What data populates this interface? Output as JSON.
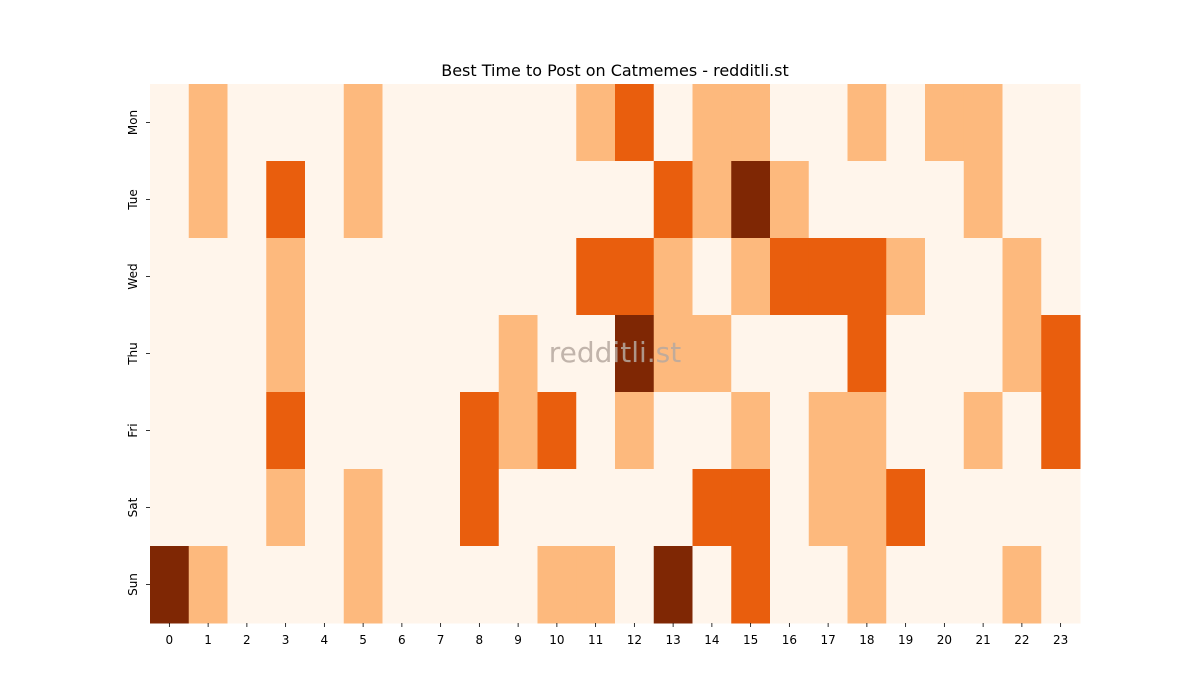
{
  "chart_data": {
    "type": "heatmap",
    "title": "Best Time to Post on Catmemes - redditli.st",
    "watermark": "redditli.st",
    "x_categories": [
      "0",
      "1",
      "2",
      "3",
      "4",
      "5",
      "6",
      "7",
      "8",
      "9",
      "10",
      "11",
      "12",
      "13",
      "14",
      "15",
      "16",
      "17",
      "18",
      "19",
      "20",
      "21",
      "22",
      "23"
    ],
    "y_categories": [
      "Mon",
      "Tue",
      "Wed",
      "Thu",
      "Fri",
      "Sat",
      "Sun"
    ],
    "xlabel": "",
    "ylabel": "",
    "levels": [
      0,
      1,
      2,
      3
    ],
    "level_colors": [
      "#fff5eb",
      "#fdb97d",
      "#e95e0d",
      "#7f2704"
    ],
    "values": [
      [
        0,
        1,
        0,
        0,
        0,
        1,
        0,
        0,
        0,
        0,
        0,
        1,
        2,
        0,
        1,
        1,
        0,
        0,
        1,
        0,
        1,
        1,
        0,
        0
      ],
      [
        0,
        1,
        0,
        2,
        0,
        1,
        0,
        0,
        0,
        0,
        0,
        0,
        0,
        2,
        1,
        3,
        1,
        0,
        0,
        0,
        0,
        1,
        0,
        0
      ],
      [
        0,
        0,
        0,
        1,
        0,
        0,
        0,
        0,
        0,
        0,
        0,
        2,
        2,
        1,
        0,
        1,
        2,
        2,
        2,
        1,
        0,
        0,
        1,
        0
      ],
      [
        0,
        0,
        0,
        1,
        0,
        0,
        0,
        0,
        0,
        1,
        0,
        0,
        3,
        1,
        1,
        0,
        0,
        0,
        2,
        0,
        0,
        0,
        1,
        2
      ],
      [
        0,
        0,
        0,
        2,
        0,
        0,
        0,
        0,
        2,
        1,
        2,
        0,
        1,
        0,
        0,
        1,
        0,
        1,
        1,
        0,
        0,
        1,
        0,
        2
      ],
      [
        0,
        0,
        0,
        1,
        0,
        1,
        0,
        0,
        2,
        0,
        0,
        0,
        0,
        0,
        2,
        2,
        0,
        1,
        1,
        2,
        0,
        0,
        0,
        0
      ],
      [
        3,
        1,
        0,
        0,
        0,
        1,
        0,
        0,
        0,
        0,
        1,
        1,
        0,
        3,
        0,
        2,
        0,
        0,
        1,
        0,
        0,
        0,
        1,
        0
      ]
    ]
  }
}
